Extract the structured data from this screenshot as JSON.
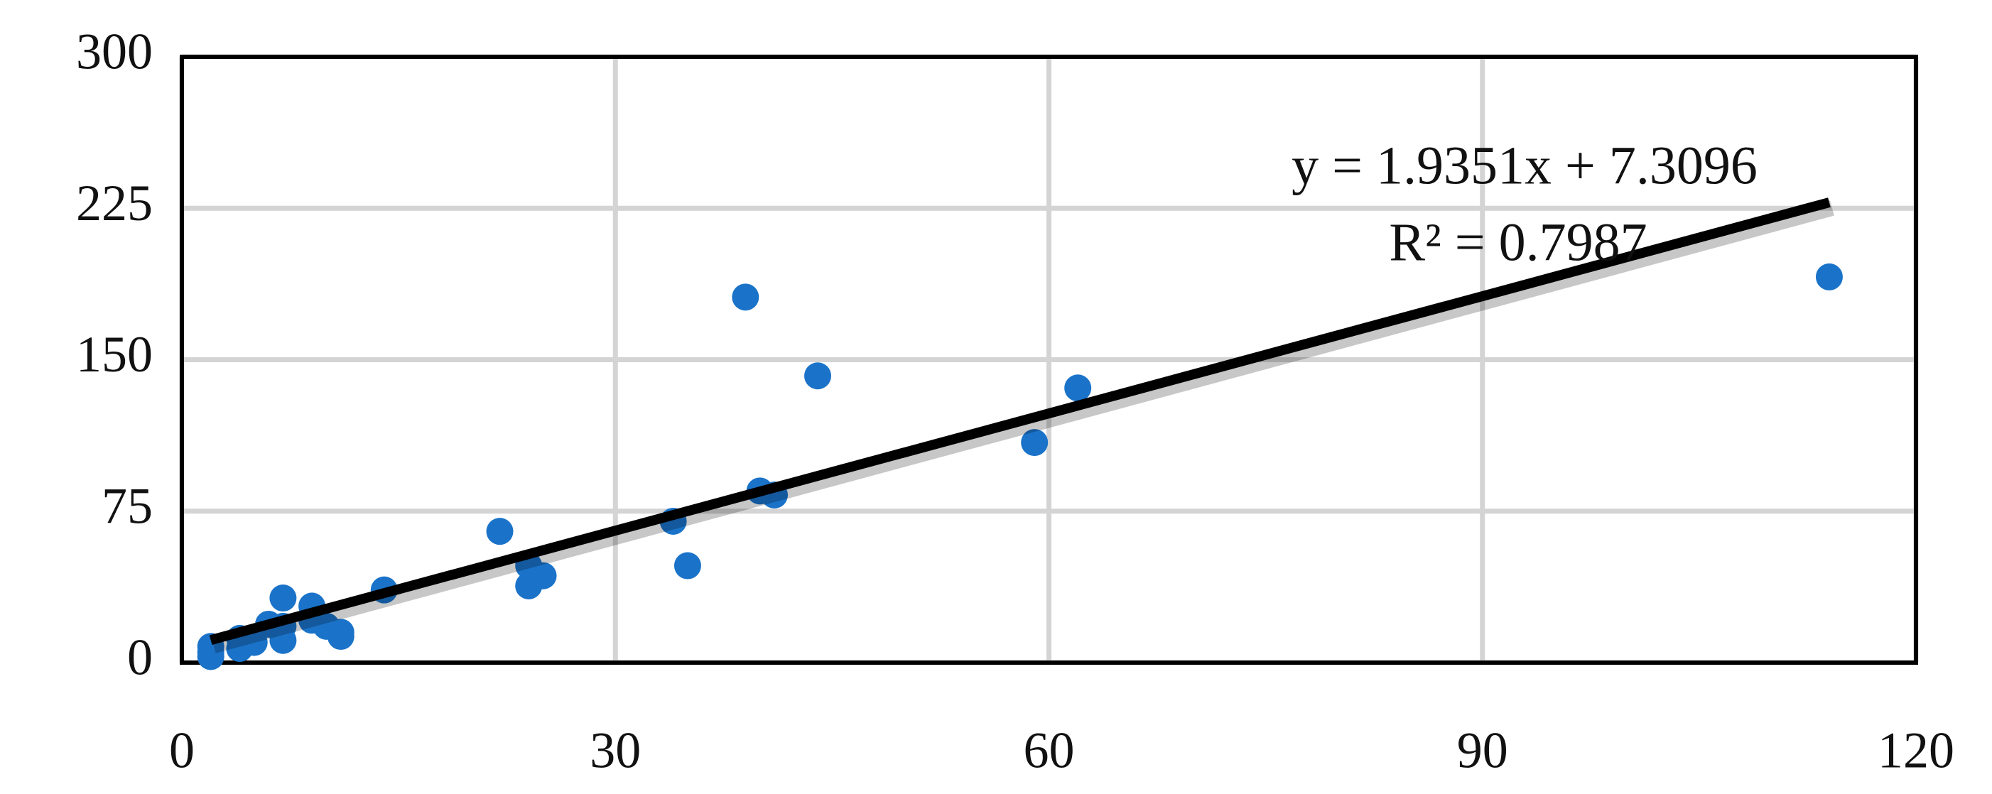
{
  "chart_data": {
    "type": "scatter",
    "color": "#1a73c9",
    "xlim": [
      0,
      120
    ],
    "xticks": [
      0,
      30,
      60,
      90,
      120
    ],
    "ylim": [
      0,
      300
    ],
    "yticks": [
      0,
      75,
      150,
      225,
      300
    ],
    "grid": true,
    "x": [
      2,
      2,
      2,
      4,
      4,
      5,
      6,
      7,
      7,
      7,
      9,
      9,
      10,
      11,
      11,
      14,
      22,
      24,
      24,
      25,
      34,
      35,
      39,
      40,
      41,
      44,
      59,
      62,
      114
    ],
    "values": [
      5,
      3,
      8,
      12,
      7,
      10,
      19,
      11,
      32,
      18,
      28,
      21,
      18,
      15,
      13,
      36,
      65,
      38,
      48,
      43,
      70,
      48,
      181,
      85,
      83,
      142,
      109,
      136,
      191
    ],
    "trendline": {
      "slope": 1.9351,
      "intercept": 7.3096,
      "equation": "y = 1.9351x + 7.3096",
      "r2_label": "R² = 0.7987",
      "color": "#000000"
    }
  }
}
